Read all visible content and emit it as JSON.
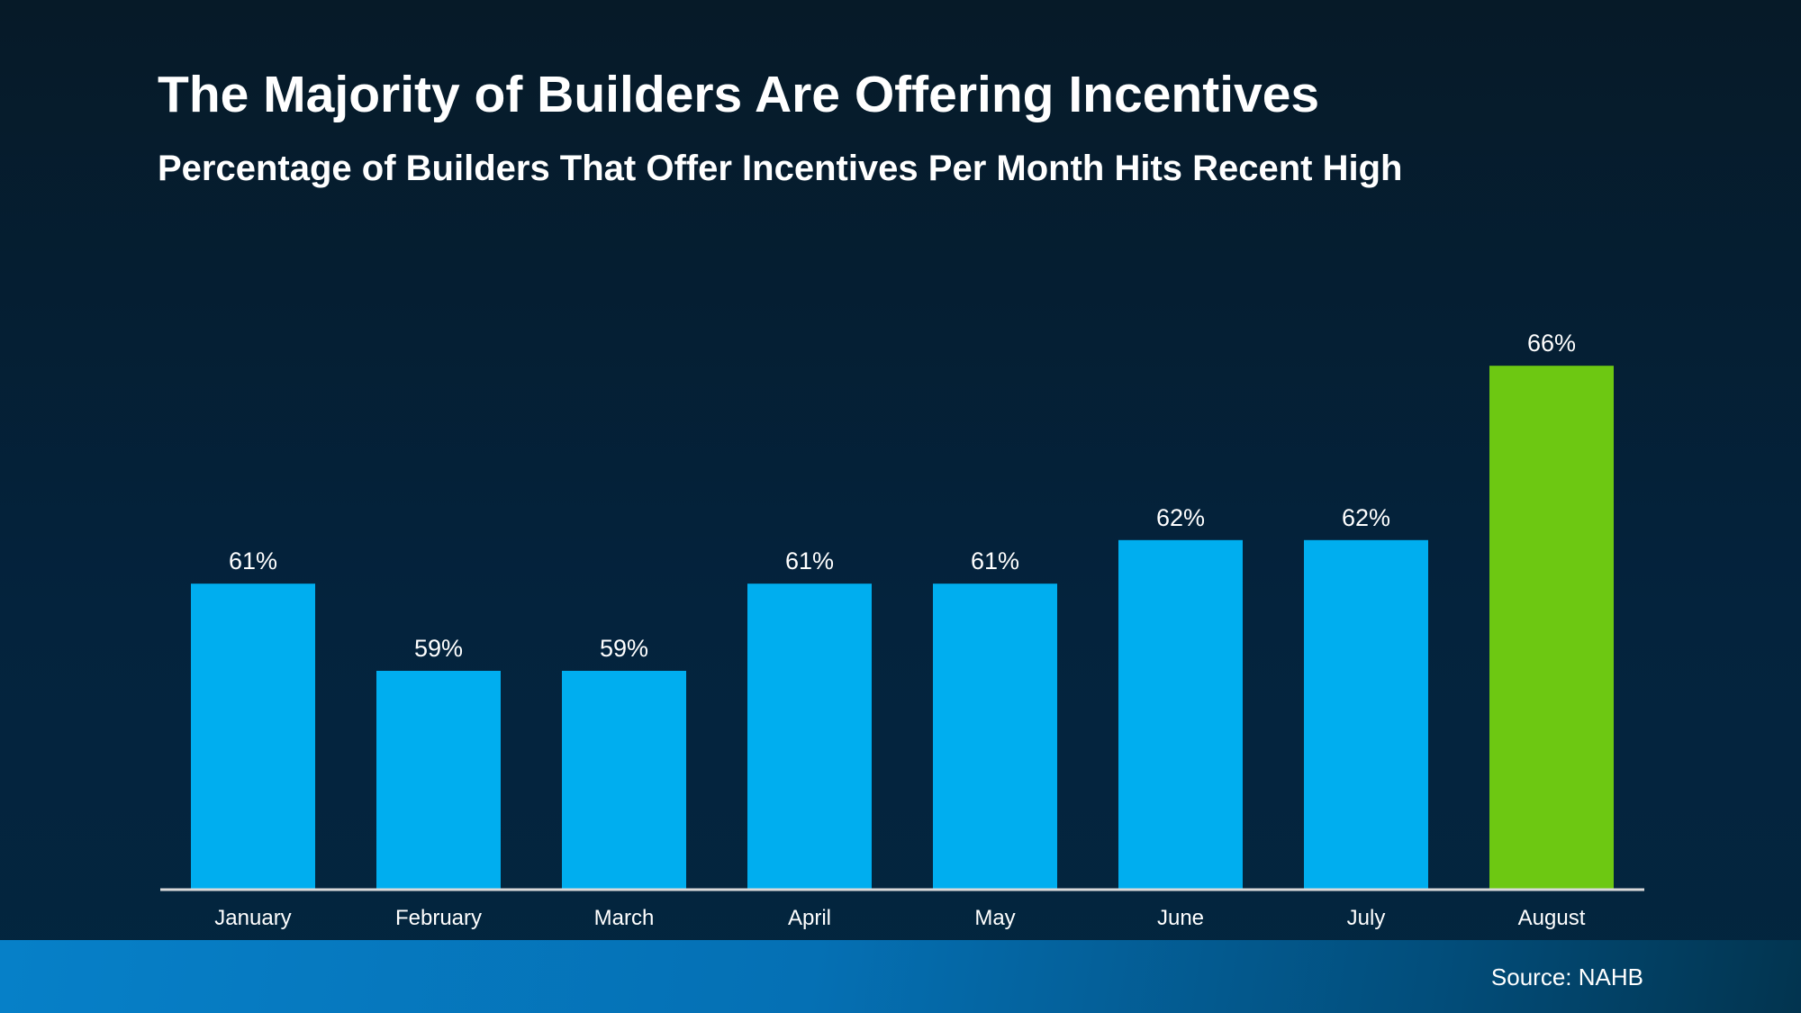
{
  "header": {
    "title": "The Majority of Builders Are Offering Incentives",
    "subtitle": "Percentage of Builders That Offer Incentives Per Month Hits Recent High"
  },
  "chart_data": {
    "type": "bar",
    "categories": [
      "January",
      "February",
      "March",
      "April",
      "May",
      "June",
      "July",
      "August"
    ],
    "values": [
      61,
      59,
      59,
      61,
      61,
      62,
      62,
      66
    ],
    "data_labels": [
      "61%",
      "59%",
      "59%",
      "61%",
      "61%",
      "62%",
      "62%",
      "66%"
    ],
    "ylim": [
      54,
      68
    ],
    "grid": false,
    "colors": {
      "default": "#00aeef",
      "highlight": "#6dc812",
      "axis": "#d9d9d9"
    },
    "highlight_index": 7
  },
  "footer": {
    "source": "Source: NAHB"
  }
}
